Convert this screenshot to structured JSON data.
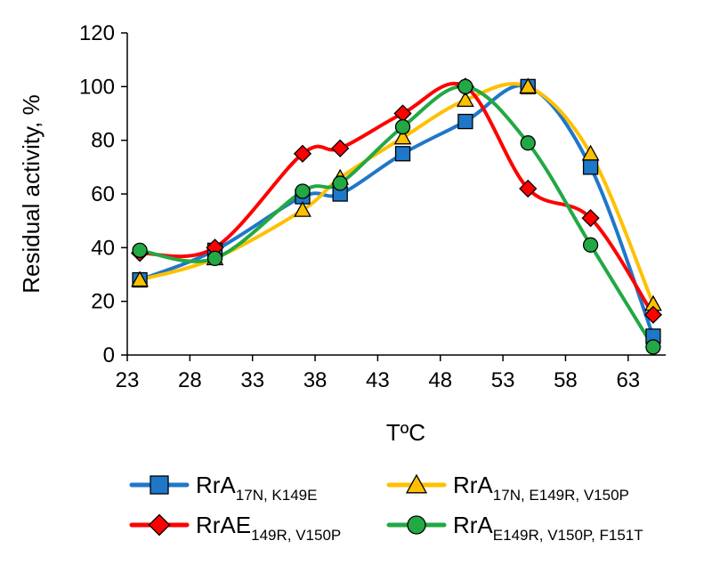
{
  "chart_data": {
    "type": "line",
    "title": "",
    "xlabel": "TºC",
    "ylabel": "Residual activity, %",
    "xlim": [
      23,
      66
    ],
    "ylim": [
      0,
      120
    ],
    "x_ticks": [
      23,
      28,
      33,
      38,
      43,
      48,
      53,
      58,
      63
    ],
    "y_ticks": [
      0,
      20,
      40,
      60,
      80,
      100,
      120
    ],
    "grid": false,
    "legend_position": "bottom",
    "series": [
      {
        "name_main": "RrA",
        "name_sub": "17N, K149E",
        "color": "#1f77c9",
        "marker": "square",
        "marker_fill": "#1f77c9",
        "x": [
          24,
          30,
          37,
          40,
          45,
          50,
          55,
          60,
          65
        ],
        "values": [
          28,
          39,
          59,
          60,
          75,
          87,
          100,
          70,
          7
        ]
      },
      {
        "name_main": "RrA",
        "name_sub": "17N, E149R, V150P",
        "color": "#ffc000",
        "marker": "triangle",
        "marker_fill": "#ffc000",
        "x": [
          24,
          30,
          37,
          40,
          45,
          50,
          55,
          60,
          65
        ],
        "values": [
          28,
          36,
          54,
          66,
          81,
          95,
          100,
          75,
          19
        ]
      },
      {
        "name_main": "RrAE",
        "name_sub": "149R, V150P",
        "color": "#ff0000",
        "marker": "diamond",
        "marker_fill": "#ff0000",
        "x": [
          24,
          30,
          37,
          40,
          45,
          50,
          55,
          60,
          65
        ],
        "values": [
          38,
          40,
          75,
          77,
          90,
          100,
          62,
          51,
          15
        ]
      },
      {
        "name_main": "RrA",
        "name_sub": "E149R, V150P, F151T",
        "color": "#22a844",
        "marker": "circle",
        "marker_fill": "#22a844",
        "x": [
          24,
          30,
          37,
          40,
          45,
          50,
          55,
          60,
          65
        ],
        "values": [
          39,
          36,
          61,
          64,
          85,
          100,
          79,
          41,
          3
        ]
      }
    ]
  }
}
